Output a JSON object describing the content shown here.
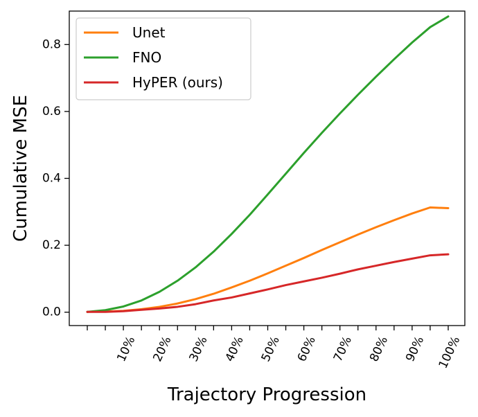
{
  "chart_data": {
    "type": "line",
    "xlabel": "Trajectory Progression",
    "ylabel": "Cumulative MSE",
    "x_tick_labels": [
      "10%",
      "20%",
      "30%",
      "40%",
      "50%",
      "60%",
      "70%",
      "80%",
      "90%",
      "100%"
    ],
    "x": [
      0,
      5,
      10,
      15,
      20,
      25,
      30,
      35,
      40,
      45,
      50,
      55,
      60,
      65,
      70,
      75,
      80,
      85,
      90,
      95,
      100
    ],
    "ylim": [
      -0.04,
      0.9
    ],
    "y_ticks": [
      0.0,
      0.2,
      0.4,
      0.6,
      0.8
    ],
    "y_tick_labels": [
      "0.0",
      "0.2",
      "0.4",
      "0.6",
      "0.8"
    ],
    "legend_position": "top-left",
    "series": [
      {
        "name": "Unet",
        "color": "#ff7f0e",
        "values": [
          0.001,
          0.002,
          0.004,
          0.009,
          0.016,
          0.026,
          0.039,
          0.055,
          0.074,
          0.094,
          0.116,
          0.139,
          0.162,
          0.186,
          0.209,
          0.232,
          0.254,
          0.275,
          0.295,
          0.313,
          0.311
        ]
      },
      {
        "name": "FNO",
        "color": "#2ca02c",
        "values": [
          0.001,
          0.006,
          0.017,
          0.035,
          0.061,
          0.094,
          0.134,
          0.181,
          0.234,
          0.291,
          0.352,
          0.414,
          0.476,
          0.536,
          0.594,
          0.65,
          0.704,
          0.756,
          0.806,
          0.852,
          0.884
        ]
      },
      {
        "name": "HyPER (ours)",
        "color": "#d62728",
        "values": [
          0.001,
          0.001,
          0.003,
          0.007,
          0.011,
          0.016,
          0.024,
          0.035,
          0.044,
          0.056,
          0.068,
          0.081,
          0.092,
          0.103,
          0.115,
          0.128,
          0.139,
          0.15,
          0.16,
          0.17,
          0.173
        ]
      }
    ]
  }
}
